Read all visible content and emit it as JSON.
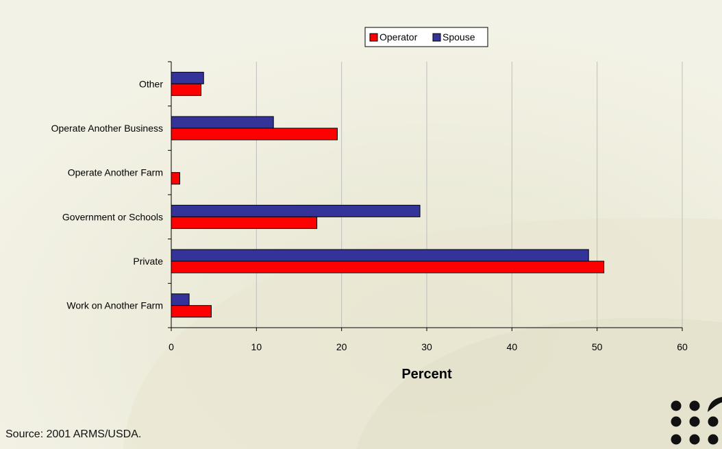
{
  "chart_data": {
    "type": "bar",
    "orientation": "horizontal",
    "categories": [
      "Work on Another Farm",
      "Private",
      "Government or Schools",
      "Operate Another Farm",
      "Operate Another Business",
      "Other"
    ],
    "series": [
      {
        "name": "Operator",
        "color": "#ff0000",
        "values": [
          4.7,
          50.8,
          17.1,
          1.0,
          19.5,
          3.5
        ]
      },
      {
        "name": "Spouse",
        "color": "#333399",
        "values": [
          2.1,
          49.0,
          29.2,
          0.0,
          12.0,
          3.8
        ]
      }
    ],
    "xlabel": "Percent",
    "ylabel": "",
    "xlim": [
      0,
      60
    ],
    "xticks": [
      "0",
      "10",
      "20",
      "30",
      "40",
      "50",
      "60"
    ],
    "grid": true,
    "legend_position": "top"
  },
  "source": "Source:  2001 ARMS/USDA.",
  "logo": {
    "icon": "dots-leaf-logo",
    "color": "#111111"
  }
}
